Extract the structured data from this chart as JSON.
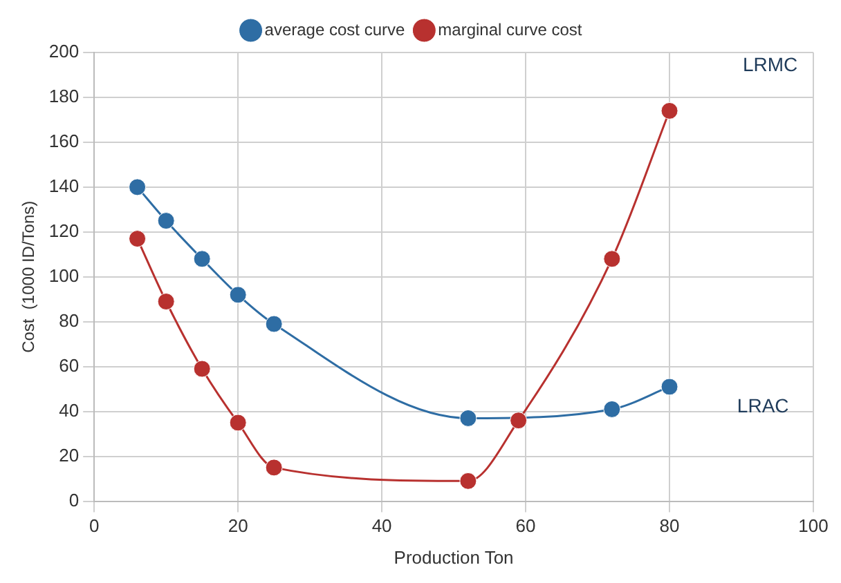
{
  "chart_data": {
    "type": "line",
    "xlabel": "Production Ton",
    "ylabel": "Cost  (1000 ID/Tons)",
    "xlim": [
      0,
      100
    ],
    "xticks": [
      0,
      20,
      40,
      60,
      80,
      100
    ],
    "ylim": [
      0,
      200
    ],
    "yticks": [
      0,
      20,
      40,
      60,
      80,
      100,
      120,
      140,
      160,
      180,
      200
    ],
    "grid": true,
    "legend": "top",
    "marker": "circle",
    "line_style": "solid",
    "series": [
      {
        "name": "average cost curve",
        "color": "#2e6da4",
        "x": [
          6,
          10,
          15,
          20,
          25,
          52,
          72,
          80
        ],
        "values": [
          140,
          125,
          108,
          92,
          79,
          37,
          41,
          51
        ]
      },
      {
        "name": "marginal curve cost",
        "color": "#b8312f",
        "x": [
          6,
          10,
          15,
          20,
          25,
          52,
          59,
          72,
          80
        ],
        "values": [
          117,
          89,
          59,
          35,
          15,
          9,
          36,
          108,
          174
        ]
      }
    ],
    "annotations": [
      "LRMC",
      "LRAC"
    ]
  }
}
